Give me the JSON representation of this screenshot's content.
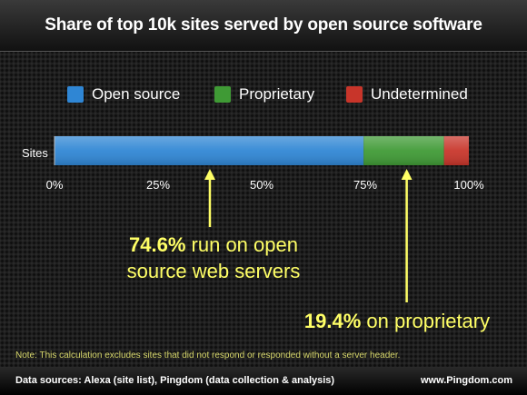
{
  "chart_data": {
    "type": "bar",
    "orientation": "horizontal",
    "stacked": true,
    "title": "Share of top 10k sites served by open source software",
    "categories": [
      "Sites"
    ],
    "series": [
      {
        "name": "Open source",
        "values": [
          74.6
        ],
        "color": "#2f86d4"
      },
      {
        "name": "Proprietary",
        "values": [
          19.4
        ],
        "color": "#3f9a35"
      },
      {
        "name": "Undetermined",
        "values": [
          6.0
        ],
        "color": "#c8352a"
      }
    ],
    "xlim": [
      0,
      100
    ],
    "x_ticks": [
      "0%",
      "25%",
      "50%",
      "75%",
      "100%"
    ],
    "legend_position": "top",
    "grid": false,
    "annotations": [
      {
        "bold": "74.6%",
        "text": " run on open source web servers",
        "points_to": 37.5
      },
      {
        "bold": "19.4%",
        "text": " on proprietary",
        "points_to": 85
      }
    ]
  },
  "note": "Note: This calculation excludes sites that did not respond or responded without a server header.",
  "footer": {
    "left": "Data sources: Alexa (site list), Pingdom (data collection & analysis)",
    "right": "www.Pingdom.com"
  },
  "colors": {
    "annotation": "#ffff66",
    "arrow": "#ffff66"
  }
}
